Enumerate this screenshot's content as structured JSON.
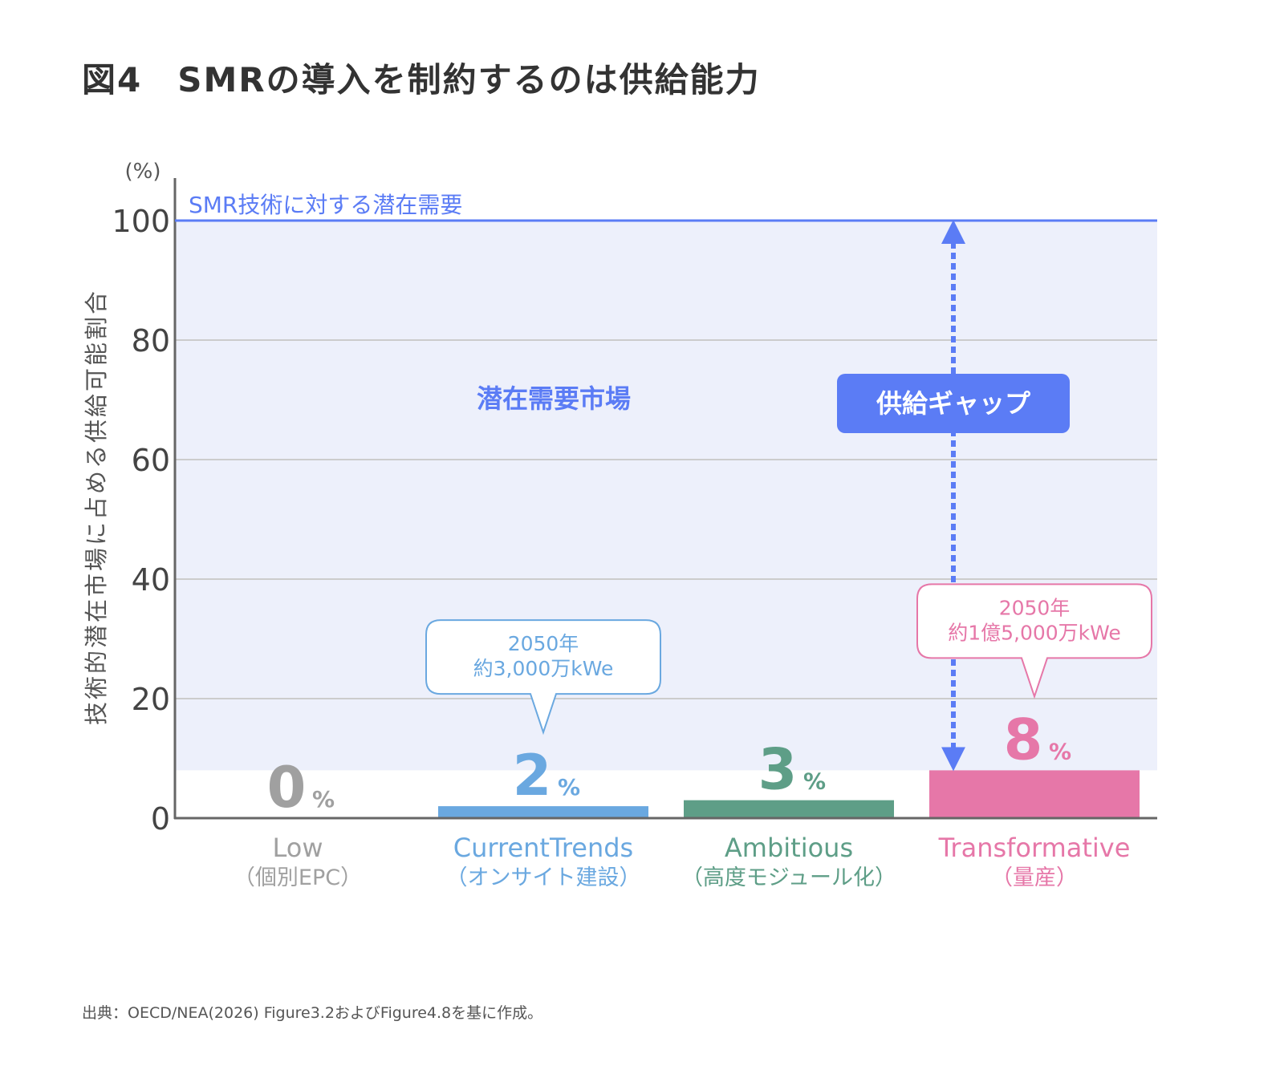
{
  "page": {
    "title": "図4　SMRの導入を制約するのは供給能力",
    "source": "出典：OECD/NEA(2026) Figure3.2およびFigure4.8を基に作成。"
  },
  "colors": {
    "demand_line": "#5b7cf5",
    "demand_fill": "#edf0fb",
    "gap_label_bg": "#5b7cf5",
    "low": "#a0a0a0",
    "current_trends": "#6aa8e0",
    "ambitious": "#5e9e87",
    "transformative": "#e677a8",
    "axis": "#666666",
    "grid": "#cccccc",
    "text": "#444444"
  },
  "chart_data": {
    "type": "bar",
    "ylabel": "技術的潜在市場に占める供給可能割合",
    "yunit": "(%)",
    "ylim": [
      0,
      100
    ],
    "yticks": [
      0,
      20,
      40,
      60,
      80,
      100
    ],
    "grid": true,
    "categories": [
      {
        "name": "Low",
        "sub": "（個別EPC）"
      },
      {
        "name": "CurrentTrends",
        "sub": "（オンサイト建設）"
      },
      {
        "name": "Ambitious",
        "sub": "（高度モジュール化）"
      },
      {
        "name": "Transformative",
        "sub": "（量産）"
      }
    ],
    "values": [
      0,
      2,
      3,
      8
    ],
    "value_labels": [
      "0",
      "2",
      "3",
      "8"
    ],
    "value_unit": "%",
    "demand_line": {
      "value": 100,
      "label": "SMR技術に対する潜在需要"
    },
    "region_label": "潜在需要市場",
    "gap": {
      "from": 8,
      "to": 100,
      "label": "供給ギャップ"
    },
    "callouts": [
      {
        "category_index": 1,
        "lines": [
          "2050年",
          "約3,000万kWe"
        ]
      },
      {
        "category_index": 3,
        "lines": [
          "2050年",
          "約1億5,000万kWe"
        ]
      }
    ]
  }
}
